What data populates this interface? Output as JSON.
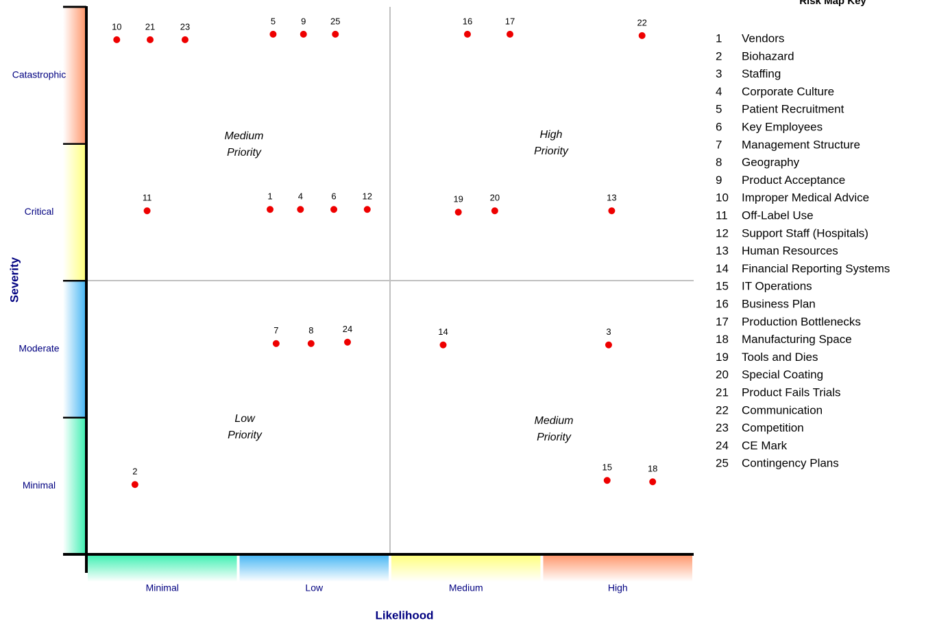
{
  "chart_data": {
    "type": "scatter",
    "title": "Risk Map Key",
    "x_label": "Likelihood",
    "y_label": "Severity",
    "x_categories": [
      "Minimal",
      "Low",
      "Medium",
      "High"
    ],
    "y_categories": [
      "Minimal",
      "Moderate",
      "Critical",
      "Catastrophic"
    ],
    "x_colors": [
      "#44f0b4",
      "#4cb8f4",
      "#ffff80",
      "#ff9a70"
    ],
    "y_colors": [
      "#44f0b4",
      "#4cb8f4",
      "#ffff80",
      "#ff9a70"
    ],
    "xlim": [
      0,
      4
    ],
    "ylim": [
      0,
      4
    ],
    "point_color": "#ee0000",
    "points": {
      "labels": [
        "10",
        "21",
        "23",
        "5",
        "9",
        "25",
        "16",
        "17",
        "22",
        "11",
        "1",
        "4",
        "6",
        "12",
        "19",
        "20",
        "13",
        "7",
        "8",
        "24",
        "14",
        "3",
        "2",
        "15",
        "18"
      ],
      "x": [
        0.2,
        0.42,
        0.65,
        1.23,
        1.43,
        1.64,
        2.51,
        2.79,
        3.66,
        0.4,
        1.21,
        1.41,
        1.63,
        1.85,
        2.45,
        2.69,
        3.46,
        1.25,
        1.48,
        1.72,
        2.35,
        3.44,
        0.32,
        3.43,
        3.73
      ],
      "y": [
        3.76,
        3.76,
        3.76,
        3.8,
        3.8,
        3.8,
        3.8,
        3.8,
        3.79,
        2.51,
        2.52,
        2.52,
        2.52,
        2.52,
        2.5,
        2.51,
        2.51,
        1.54,
        1.54,
        1.55,
        1.53,
        1.53,
        0.51,
        0.54,
        0.53
      ]
    },
    "annotations": [
      [
        "Medium",
        "Priority"
      ],
      [
        "High",
        "Priority"
      ],
      [
        "Low",
        "Priority"
      ],
      [
        "Medium",
        "Priority"
      ]
    ],
    "key": [
      [
        "1",
        "Vendors"
      ],
      [
        "2",
        "Biohazard"
      ],
      [
        "3",
        "Staffing"
      ],
      [
        "4",
        "Corporate Culture"
      ],
      [
        "5",
        "Patient Recruitment"
      ],
      [
        "6",
        "Key Employees"
      ],
      [
        "7",
        "Management Structure"
      ],
      [
        "8",
        "Geography"
      ],
      [
        "9",
        "Product Acceptance"
      ],
      [
        "10",
        "Improper Medical Advice"
      ],
      [
        "11",
        "Off-Label Use"
      ],
      [
        "12",
        "Support Staff (Hospitals)"
      ],
      [
        "13",
        "Human Resources"
      ],
      [
        "14",
        "Financial Reporting Systems"
      ],
      [
        "15",
        "IT Operations"
      ],
      [
        "16",
        "Business Plan"
      ],
      [
        "17",
        "Production Bottlenecks"
      ],
      [
        "18",
        "Manufacturing Space"
      ],
      [
        "19",
        "Tools and Dies"
      ],
      [
        "20",
        "Special Coating"
      ],
      [
        "21",
        "Product Fails Trials"
      ],
      [
        "22",
        "Communication"
      ],
      [
        "23",
        "Competition"
      ],
      [
        "24",
        "CE Mark"
      ],
      [
        "25",
        "Contingency Plans"
      ]
    ]
  }
}
